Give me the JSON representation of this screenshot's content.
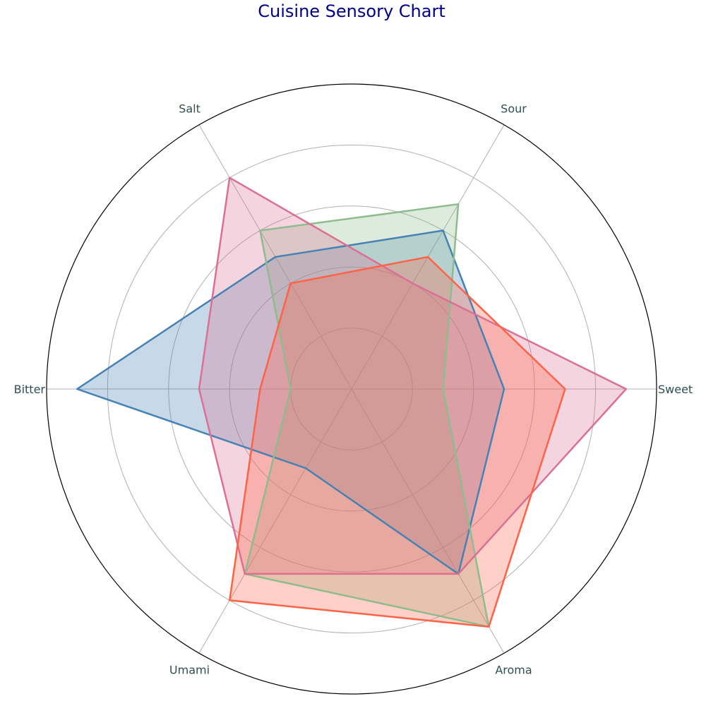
{
  "chart_data": {
    "type": "radar",
    "title": "Cuisine Sensory Chart",
    "axes": [
      "Sweet",
      "Sour",
      "Salt",
      "Bitter",
      "Umami",
      "Aroma"
    ],
    "rlim": [
      0,
      5
    ],
    "grid_levels": [
      1,
      2,
      3,
      4,
      5
    ],
    "grid": true,
    "legend": "none",
    "series": [
      {
        "color": "#4682b4",
        "fill_opacity": 0.3,
        "values": [
          2.5,
          3.0,
          2.5,
          4.5,
          1.5,
          3.5
        ]
      },
      {
        "color": "#8fbc8f",
        "fill_opacity": 0.3,
        "values": [
          1.5,
          3.5,
          3.0,
          1.0,
          3.5,
          4.5
        ]
      },
      {
        "color": "#db7093",
        "fill_opacity": 0.3,
        "values": [
          4.5,
          2.0,
          4.0,
          2.5,
          3.5,
          3.5
        ]
      },
      {
        "color": "#ff6347",
        "fill_opacity": 0.3,
        "values": [
          3.5,
          2.5,
          2.0,
          1.5,
          4.0,
          4.5
        ]
      }
    ]
  }
}
